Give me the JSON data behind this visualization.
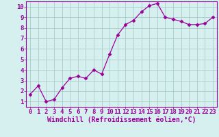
{
  "x": [
    0,
    1,
    2,
    3,
    4,
    5,
    6,
    7,
    8,
    9,
    10,
    11,
    12,
    13,
    14,
    15,
    16,
    17,
    18,
    19,
    20,
    21,
    22,
    23
  ],
  "y": [
    1.7,
    2.5,
    1.0,
    1.2,
    2.3,
    3.2,
    3.4,
    3.2,
    4.0,
    3.6,
    5.5,
    7.3,
    8.3,
    8.7,
    9.5,
    10.1,
    10.3,
    9.0,
    8.8,
    8.6,
    8.3,
    8.3,
    8.4,
    9.0
  ],
  "line_color": "#990099",
  "marker": "D",
  "marker_size": 2.5,
  "bg_color": "#d6f0f0",
  "grid_color": "#aacccc",
  "xlabel": "Windchill (Refroidissement éolien,°C)",
  "xlim": [
    -0.5,
    23.5
  ],
  "ylim": [
    0.5,
    10.5
  ],
  "xticks": [
    0,
    1,
    2,
    3,
    4,
    5,
    6,
    7,
    8,
    9,
    10,
    11,
    12,
    13,
    14,
    15,
    16,
    17,
    18,
    19,
    20,
    21,
    22,
    23
  ],
  "yticks": [
    1,
    2,
    3,
    4,
    5,
    6,
    7,
    8,
    9,
    10
  ],
  "text_color": "#990099",
  "axis_color": "#990099",
  "tick_font_size": 6.5,
  "xlabel_font_size": 7.0
}
